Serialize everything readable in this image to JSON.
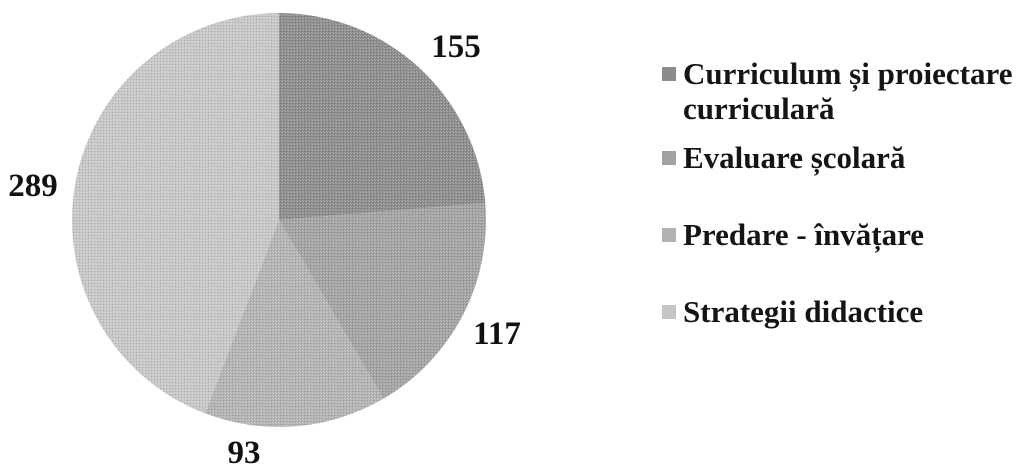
{
  "chart_data": {
    "type": "pie",
    "title": "",
    "slices": [
      {
        "label": "Curriculum și proiectare curriculară",
        "value": 155,
        "color": "#8c8c8c"
      },
      {
        "label": "Evaluare școlară",
        "value": 117,
        "color": "#a2a2a2"
      },
      {
        "label": "Predare - învățare",
        "value": 93,
        "color": "#b2b2b2"
      },
      {
        "label": "Strategii didactice",
        "value": 289,
        "color": "#c6c6c6"
      }
    ],
    "legend_position": "right",
    "start_angle": "12 o'clock",
    "direction": "clockwise"
  },
  "legend": {
    "items": [
      {
        "label_line1": "Curriculum și proiectare",
        "label_line2": "curriculară"
      },
      {
        "label_line1": "Evaluare școlară",
        "label_line2": ""
      },
      {
        "label_line1": "Predare - învățare",
        "label_line2": ""
      },
      {
        "label_line1": "Strategii didactice",
        "label_line2": ""
      }
    ]
  }
}
